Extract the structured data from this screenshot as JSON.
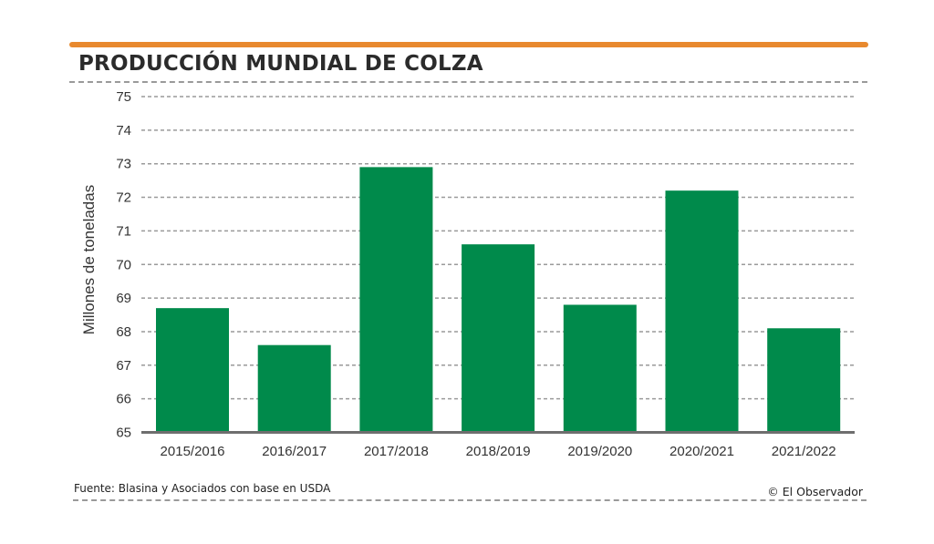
{
  "header": {
    "title": "PRODUCCIÓN MUNDIAL DE COLZA"
  },
  "footer": {
    "source": "Fuente: Blasina y Asociados con base en USDA",
    "credit": "© El Observador"
  },
  "colors": {
    "accent": "#e8892e",
    "bar": "#008a4b",
    "grid": "#9a9a9a",
    "axis": "#6e6e6e"
  },
  "chart_data": {
    "type": "bar",
    "title": "PRODUCCIÓN MUNDIAL DE COLZA",
    "xlabel": "",
    "ylabel": "Millones de toneladas",
    "categories": [
      "2015/2016",
      "2016/2017",
      "2017/2018",
      "2018/2019",
      "2019/2020",
      "2020/2021",
      "2021/2022"
    ],
    "values": [
      68.7,
      67.6,
      72.9,
      70.6,
      68.8,
      72.2,
      68.1
    ],
    "ylim": [
      65,
      75
    ],
    "yticks": [
      65,
      66,
      67,
      68,
      69,
      70,
      71,
      72,
      73,
      74,
      75
    ],
    "grid": true,
    "legend": "none"
  }
}
